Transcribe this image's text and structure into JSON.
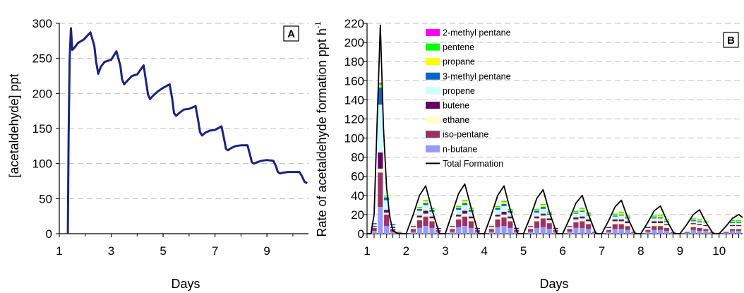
{
  "chart_data": [
    {
      "type": "line",
      "panel_label": "A",
      "xlabel": "Days",
      "ylabel": "[acetaldehyde] ppt",
      "xlim": [
        1,
        10.6
      ],
      "ylim": [
        0,
        300
      ],
      "xticks": [
        1,
        3,
        5,
        7,
        9
      ],
      "xtick_labels": [
        "1",
        "3",
        "5",
        "7",
        "9"
      ],
      "yticks": [
        0,
        50,
        100,
        150,
        200,
        250,
        300
      ],
      "ytick_labels": [
        "0",
        "50",
        "100",
        "150",
        "200",
        "250",
        "300"
      ],
      "grid": "horizontal dashed",
      "line_color": "#1a237e",
      "series": [
        {
          "x": [
            1.33,
            1.36,
            1.4,
            1.45,
            1.5,
            1.58,
            1.72,
            1.95,
            2.2,
            2.35,
            2.42,
            2.5,
            2.6,
            2.75,
            3.0,
            3.2,
            3.35,
            3.42,
            3.5,
            3.62,
            3.8,
            4.0,
            4.25,
            4.35,
            4.42,
            4.5,
            4.62,
            4.8,
            5.0,
            5.25,
            5.35,
            5.42,
            5.5,
            5.62,
            5.8,
            6.0,
            6.25,
            6.35,
            6.42,
            6.5,
            6.62,
            6.8,
            7.0,
            7.25,
            7.35,
            7.42,
            7.5,
            7.62,
            7.8,
            8.0,
            8.25,
            8.35,
            8.42,
            8.5,
            8.62,
            8.8,
            9.0,
            9.25,
            9.35,
            9.42,
            9.5,
            9.62,
            9.8,
            10.0,
            10.25,
            10.35,
            10.45,
            10.55
          ],
          "y": [
            0,
            140,
            250,
            293,
            262,
            265,
            272,
            277,
            287,
            268,
            245,
            228,
            238,
            245,
            248,
            260,
            240,
            220,
            213,
            218,
            225,
            227,
            240,
            215,
            198,
            192,
            197,
            203,
            208,
            213,
            192,
            172,
            168,
            172,
            177,
            178,
            182,
            162,
            145,
            140,
            144,
            147,
            148,
            153,
            135,
            121,
            119,
            122,
            125,
            126,
            126,
            112,
            102,
            100,
            102,
            104,
            105,
            104,
            96,
            88,
            86,
            87,
            88,
            88,
            88,
            82,
            74,
            72
          ]
        }
      ]
    },
    {
      "type": "bar",
      "stacked": true,
      "panel_label": "B",
      "xlabel": "Days",
      "ylabel": "Rate of acetaldehyde formation ppt h",
      "ylabel_superscript": "-1",
      "xlim": [
        1,
        10.6
      ],
      "ylim": [
        0,
        220
      ],
      "xticks": [
        1,
        2,
        3,
        4,
        5,
        6,
        7,
        8,
        9,
        10
      ],
      "xtick_labels": [
        "1",
        "2",
        "3",
        "4",
        "5",
        "6",
        "7",
        "8",
        "9",
        "10"
      ],
      "yticks": [
        0,
        20,
        40,
        60,
        80,
        100,
        120,
        140,
        160,
        180,
        200,
        220
      ],
      "ytick_labels": [
        "0",
        "20",
        "40",
        "60",
        "80",
        "100",
        "120",
        "140",
        "160",
        "180",
        "200",
        "220"
      ],
      "grid": "horizontal dashed",
      "legend_position": "top-left inside plot",
      "bar_positions": [
        1.18,
        1.34,
        1.5,
        1.66,
        1.82,
        2.18,
        2.34,
        2.5,
        2.66,
        2.82,
        3.18,
        3.34,
        3.5,
        3.66,
        3.82,
        4.18,
        4.34,
        4.5,
        4.66,
        4.82,
        5.18,
        5.34,
        5.5,
        5.66,
        5.82,
        6.18,
        6.34,
        6.5,
        6.66,
        6.82,
        7.18,
        7.34,
        7.5,
        7.66,
        7.82,
        8.18,
        8.34,
        8.5,
        8.66,
        8.82,
        9.18,
        9.34,
        9.5,
        9.66,
        9.82,
        10.18,
        10.34,
        10.5
      ],
      "series": [
        {
          "name": "n-butane",
          "color": "#9999ff",
          "values": [
            3,
            28,
            8,
            2,
            1,
            2,
            6,
            8,
            6,
            2,
            2,
            7,
            8,
            6,
            2,
            2,
            7,
            8,
            6,
            2,
            2,
            6,
            7,
            5,
            2,
            2,
            6,
            6,
            5,
            1,
            2,
            5,
            5,
            4,
            1,
            2,
            4,
            4,
            3,
            1,
            1,
            4,
            3,
            3,
            1,
            1,
            3,
            3
          ]
        },
        {
          "name": "iso-pentane",
          "color": "#993366",
          "values": [
            3,
            36,
            12,
            3,
            1,
            3,
            8,
            10,
            7,
            2,
            3,
            8,
            10,
            7,
            2,
            3,
            8,
            9,
            7,
            2,
            3,
            7,
            9,
            6,
            2,
            3,
            6,
            7,
            5,
            1,
            2,
            5,
            5,
            4,
            1,
            2,
            4,
            4,
            3,
            1,
            1,
            3,
            3,
            2,
            1,
            1,
            2,
            2
          ]
        },
        {
          "name": "ethane",
          "color": "#ffffcc",
          "values": [
            1,
            4,
            2,
            1,
            1,
            2,
            3,
            3,
            3,
            1,
            2,
            3,
            3,
            3,
            1,
            2,
            3,
            3,
            3,
            1,
            2,
            3,
            3,
            3,
            1,
            2,
            3,
            3,
            3,
            1,
            2,
            3,
            3,
            3,
            1,
            2,
            3,
            3,
            3,
            1,
            1,
            3,
            3,
            3,
            1,
            1,
            3,
            3
          ]
        },
        {
          "name": "butene",
          "color": "#660066",
          "values": [
            1,
            17,
            3,
            1,
            0,
            1,
            2,
            3,
            2,
            1,
            1,
            2,
            3,
            2,
            1,
            1,
            2,
            3,
            2,
            1,
            1,
            2,
            2,
            2,
            1,
            1,
            2,
            2,
            2,
            0,
            1,
            2,
            2,
            2,
            0,
            1,
            2,
            2,
            1,
            0,
            0,
            1,
            1,
            1,
            0,
            0,
            1,
            1
          ]
        },
        {
          "name": "propene",
          "color": "#ccffff",
          "values": [
            2,
            50,
            10,
            2,
            1,
            2,
            5,
            6,
            5,
            2,
            2,
            5,
            6,
            5,
            2,
            2,
            5,
            6,
            4,
            2,
            2,
            4,
            5,
            4,
            1,
            2,
            4,
            5,
            4,
            1,
            1,
            3,
            4,
            3,
            1,
            1,
            3,
            3,
            2,
            1,
            1,
            2,
            2,
            2,
            0,
            1,
            2,
            2
          ]
        },
        {
          "name": "3-methyl pentane",
          "color": "#0066cc",
          "values": [
            1,
            18,
            3,
            1,
            0,
            0,
            2,
            2,
            2,
            0,
            0,
            2,
            2,
            2,
            0,
            0,
            2,
            2,
            2,
            0,
            0,
            2,
            2,
            1,
            0,
            0,
            1,
            1,
            1,
            0,
            0,
            1,
            1,
            1,
            0,
            0,
            1,
            1,
            1,
            0,
            0,
            1,
            1,
            0,
            0,
            0,
            1,
            1
          ]
        },
        {
          "name": "propane",
          "color": "#ffff00",
          "values": [
            0,
            2,
            1,
            0,
            0,
            0,
            1,
            2,
            1,
            0,
            0,
            1,
            2,
            1,
            0,
            0,
            1,
            2,
            1,
            0,
            0,
            1,
            2,
            1,
            0,
            0,
            1,
            2,
            1,
            0,
            0,
            1,
            2,
            1,
            0,
            0,
            1,
            2,
            1,
            0,
            0,
            1,
            1,
            1,
            0,
            0,
            1,
            1
          ]
        },
        {
          "name": "pentene",
          "color": "#00ff00",
          "values": [
            0,
            2,
            1,
            0,
            0,
            0,
            1,
            1,
            1,
            0,
            0,
            1,
            1,
            1,
            0,
            0,
            1,
            1,
            1,
            0,
            0,
            1,
            1,
            1,
            0,
            0,
            1,
            1,
            1,
            0,
            0,
            1,
            1,
            1,
            0,
            0,
            1,
            1,
            1,
            0,
            0,
            1,
            1,
            1,
            0,
            0,
            1,
            1
          ]
        },
        {
          "name": "2-methyl pentane",
          "color": "#ff00ff",
          "values": [
            0,
            1,
            0,
            0,
            0,
            0,
            0,
            0,
            0,
            0,
            0,
            0,
            0,
            0,
            0,
            0,
            0,
            0,
            0,
            0,
            0,
            0,
            0,
            0,
            0,
            0,
            0,
            0,
            0,
            0,
            0,
            0,
            0,
            0,
            0,
            0,
            0,
            0,
            0,
            0,
            0,
            0,
            0,
            0,
            0,
            0,
            0,
            0
          ]
        }
      ],
      "total_formation": {
        "name": "Total Formation",
        "color": "#000000",
        "x": [
          1.0,
          1.1,
          1.18,
          1.26,
          1.34,
          1.42,
          1.5,
          1.58,
          1.66,
          1.8,
          1.9,
          2.0,
          2.18,
          2.34,
          2.5,
          2.66,
          2.85,
          3.0,
          3.18,
          3.34,
          3.5,
          3.66,
          3.85,
          4.0,
          4.18,
          4.34,
          4.5,
          4.66,
          4.85,
          5.0,
          5.18,
          5.34,
          5.5,
          5.66,
          5.85,
          6.0,
          6.18,
          6.34,
          6.5,
          6.66,
          6.85,
          7.0,
          7.18,
          7.34,
          7.5,
          7.66,
          7.85,
          8.0,
          8.18,
          8.34,
          8.5,
          8.66,
          8.85,
          9.0,
          9.18,
          9.34,
          9.5,
          9.66,
          9.85,
          10.0,
          10.18,
          10.34,
          10.5,
          10.6
        ],
        "y": [
          0,
          0,
          20,
          120,
          218,
          110,
          48,
          18,
          3,
          0,
          0,
          0,
          20,
          40,
          50,
          25,
          0,
          0,
          22,
          42,
          52,
          27,
          0,
          0,
          20,
          40,
          50,
          25,
          0,
          0,
          18,
          37,
          46,
          23,
          0,
          0,
          16,
          32,
          40,
          20,
          0,
          0,
          14,
          28,
          35,
          17,
          0,
          0,
          12,
          24,
          29,
          14,
          0,
          0,
          10,
          20,
          25,
          12,
          0,
          0,
          8,
          16,
          20,
          17
        ]
      },
      "legend": [
        "2-methyl pentane",
        "pentene",
        "propane",
        "3-methyl pentane",
        "propene",
        "butene",
        "ethane",
        "iso-pentane",
        "n-butane",
        "Total Formation"
      ]
    }
  ]
}
